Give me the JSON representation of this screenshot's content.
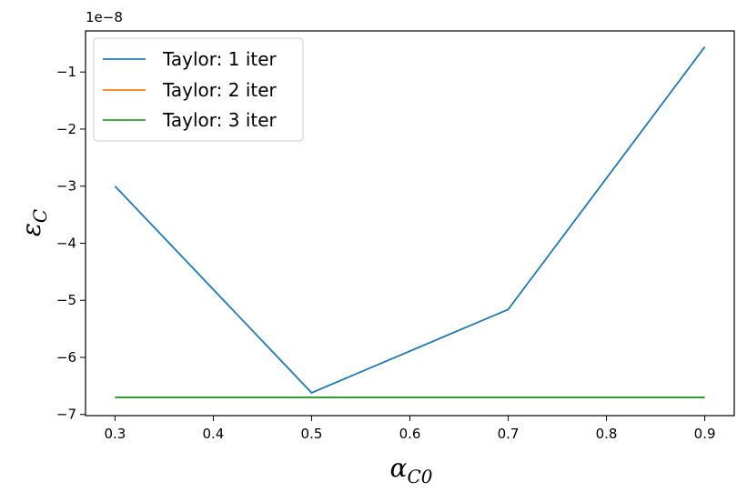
{
  "chart_data": {
    "type": "line",
    "x": [
      0.3,
      0.5,
      0.7,
      0.9
    ],
    "series": [
      {
        "name": "Taylor: 1 iter",
        "color": "#1f77b4",
        "values": [
          -3.0,
          -6.62,
          -5.16,
          -0.56
        ]
      },
      {
        "name": "Taylor: 2 iter",
        "color": "#ff7f0e",
        "values": [
          -6.7,
          -6.7,
          -6.7,
          -6.7
        ]
      },
      {
        "name": "Taylor: 3 iter",
        "color": "#2ca02c",
        "values": [
          -6.7,
          -6.7,
          -6.7,
          -6.7
        ]
      }
    ],
    "y_offset_label": "1e−8",
    "xlabel": {
      "symbol": "α",
      "sub": "C0"
    },
    "ylabel": {
      "symbol": "ε",
      "sub": "C"
    },
    "xlim": [
      0.27,
      0.93
    ],
    "ylim": [
      -7.02,
      -0.28
    ],
    "xticks": [
      0.3,
      0.4,
      0.5,
      0.6,
      0.7,
      0.8,
      0.9
    ],
    "xtick_labels": [
      "0.3",
      "0.4",
      "0.5",
      "0.6",
      "0.7",
      "0.8",
      "0.9"
    ],
    "yticks": [
      -7,
      -6,
      -5,
      -4,
      -3,
      -2,
      -1
    ],
    "ytick_labels": [
      "−7",
      "−6",
      "−5",
      "−4",
      "−3",
      "−2",
      "−1"
    ],
    "grid": false,
    "legend_position": "upper-left"
  }
}
